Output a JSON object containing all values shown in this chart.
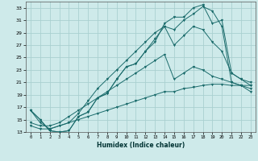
{
  "xlabel": "Humidex (Indice chaleur)",
  "bg_color": "#ceeaea",
  "grid_color": "#aad0d0",
  "line_color": "#1a6b6b",
  "xlim": [
    -0.5,
    23.5
  ],
  "ylim": [
    13,
    34
  ],
  "xtick_labels": [
    "0",
    "1",
    "2",
    "3",
    "4",
    "5",
    "6",
    "7",
    "8",
    "9",
    "10",
    "11",
    "12",
    "13",
    "14",
    "15",
    "16",
    "17",
    "18",
    "19",
    "20",
    "21",
    "22",
    "23"
  ],
  "ytick_labels": [
    "13",
    "15",
    "17",
    "19",
    "21",
    "23",
    "25",
    "27",
    "29",
    "31",
    "33"
  ],
  "ytick_vals": [
    13,
    15,
    17,
    19,
    21,
    23,
    25,
    27,
    29,
    31,
    33
  ],
  "series": [
    [
      16.5,
      15.0,
      13.2,
      13.0,
      13.2,
      15.5,
      16.2,
      18.5,
      19.2,
      21.5,
      23.5,
      24.0,
      26.0,
      28.0,
      30.0,
      29.5,
      31.0,
      32.0,
      33.2,
      32.5,
      30.0,
      21.0,
      20.5,
      19.5
    ],
    [
      16.5,
      15.0,
      13.2,
      13.0,
      13.2,
      15.5,
      16.2,
      18.5,
      19.2,
      21.5,
      23.5,
      24.0,
      26.0,
      27.5,
      30.5,
      31.5,
      31.5,
      33.0,
      33.5,
      30.5,
      31.0,
      22.5,
      21.5,
      20.5
    ],
    [
      16.5,
      14.5,
      13.5,
      14.0,
      14.5,
      16.0,
      18.0,
      20.0,
      21.5,
      23.0,
      24.5,
      26.0,
      27.5,
      29.0,
      30.0,
      27.0,
      28.5,
      30.0,
      29.5,
      27.5,
      26.0,
      22.5,
      21.5,
      21.0
    ],
    [
      14.5,
      14.0,
      14.0,
      14.5,
      15.5,
      16.5,
      17.5,
      18.5,
      19.5,
      20.5,
      21.5,
      22.5,
      23.5,
      24.5,
      25.5,
      21.5,
      22.5,
      23.5,
      23.0,
      22.0,
      21.5,
      21.0,
      20.5,
      20.0
    ],
    [
      14.0,
      13.5,
      13.5,
      14.0,
      14.5,
      15.0,
      15.5,
      16.0,
      16.5,
      17.0,
      17.5,
      18.0,
      18.5,
      19.0,
      19.5,
      19.5,
      20.0,
      20.2,
      20.5,
      20.7,
      20.7,
      20.5,
      20.5,
      20.5
    ]
  ]
}
